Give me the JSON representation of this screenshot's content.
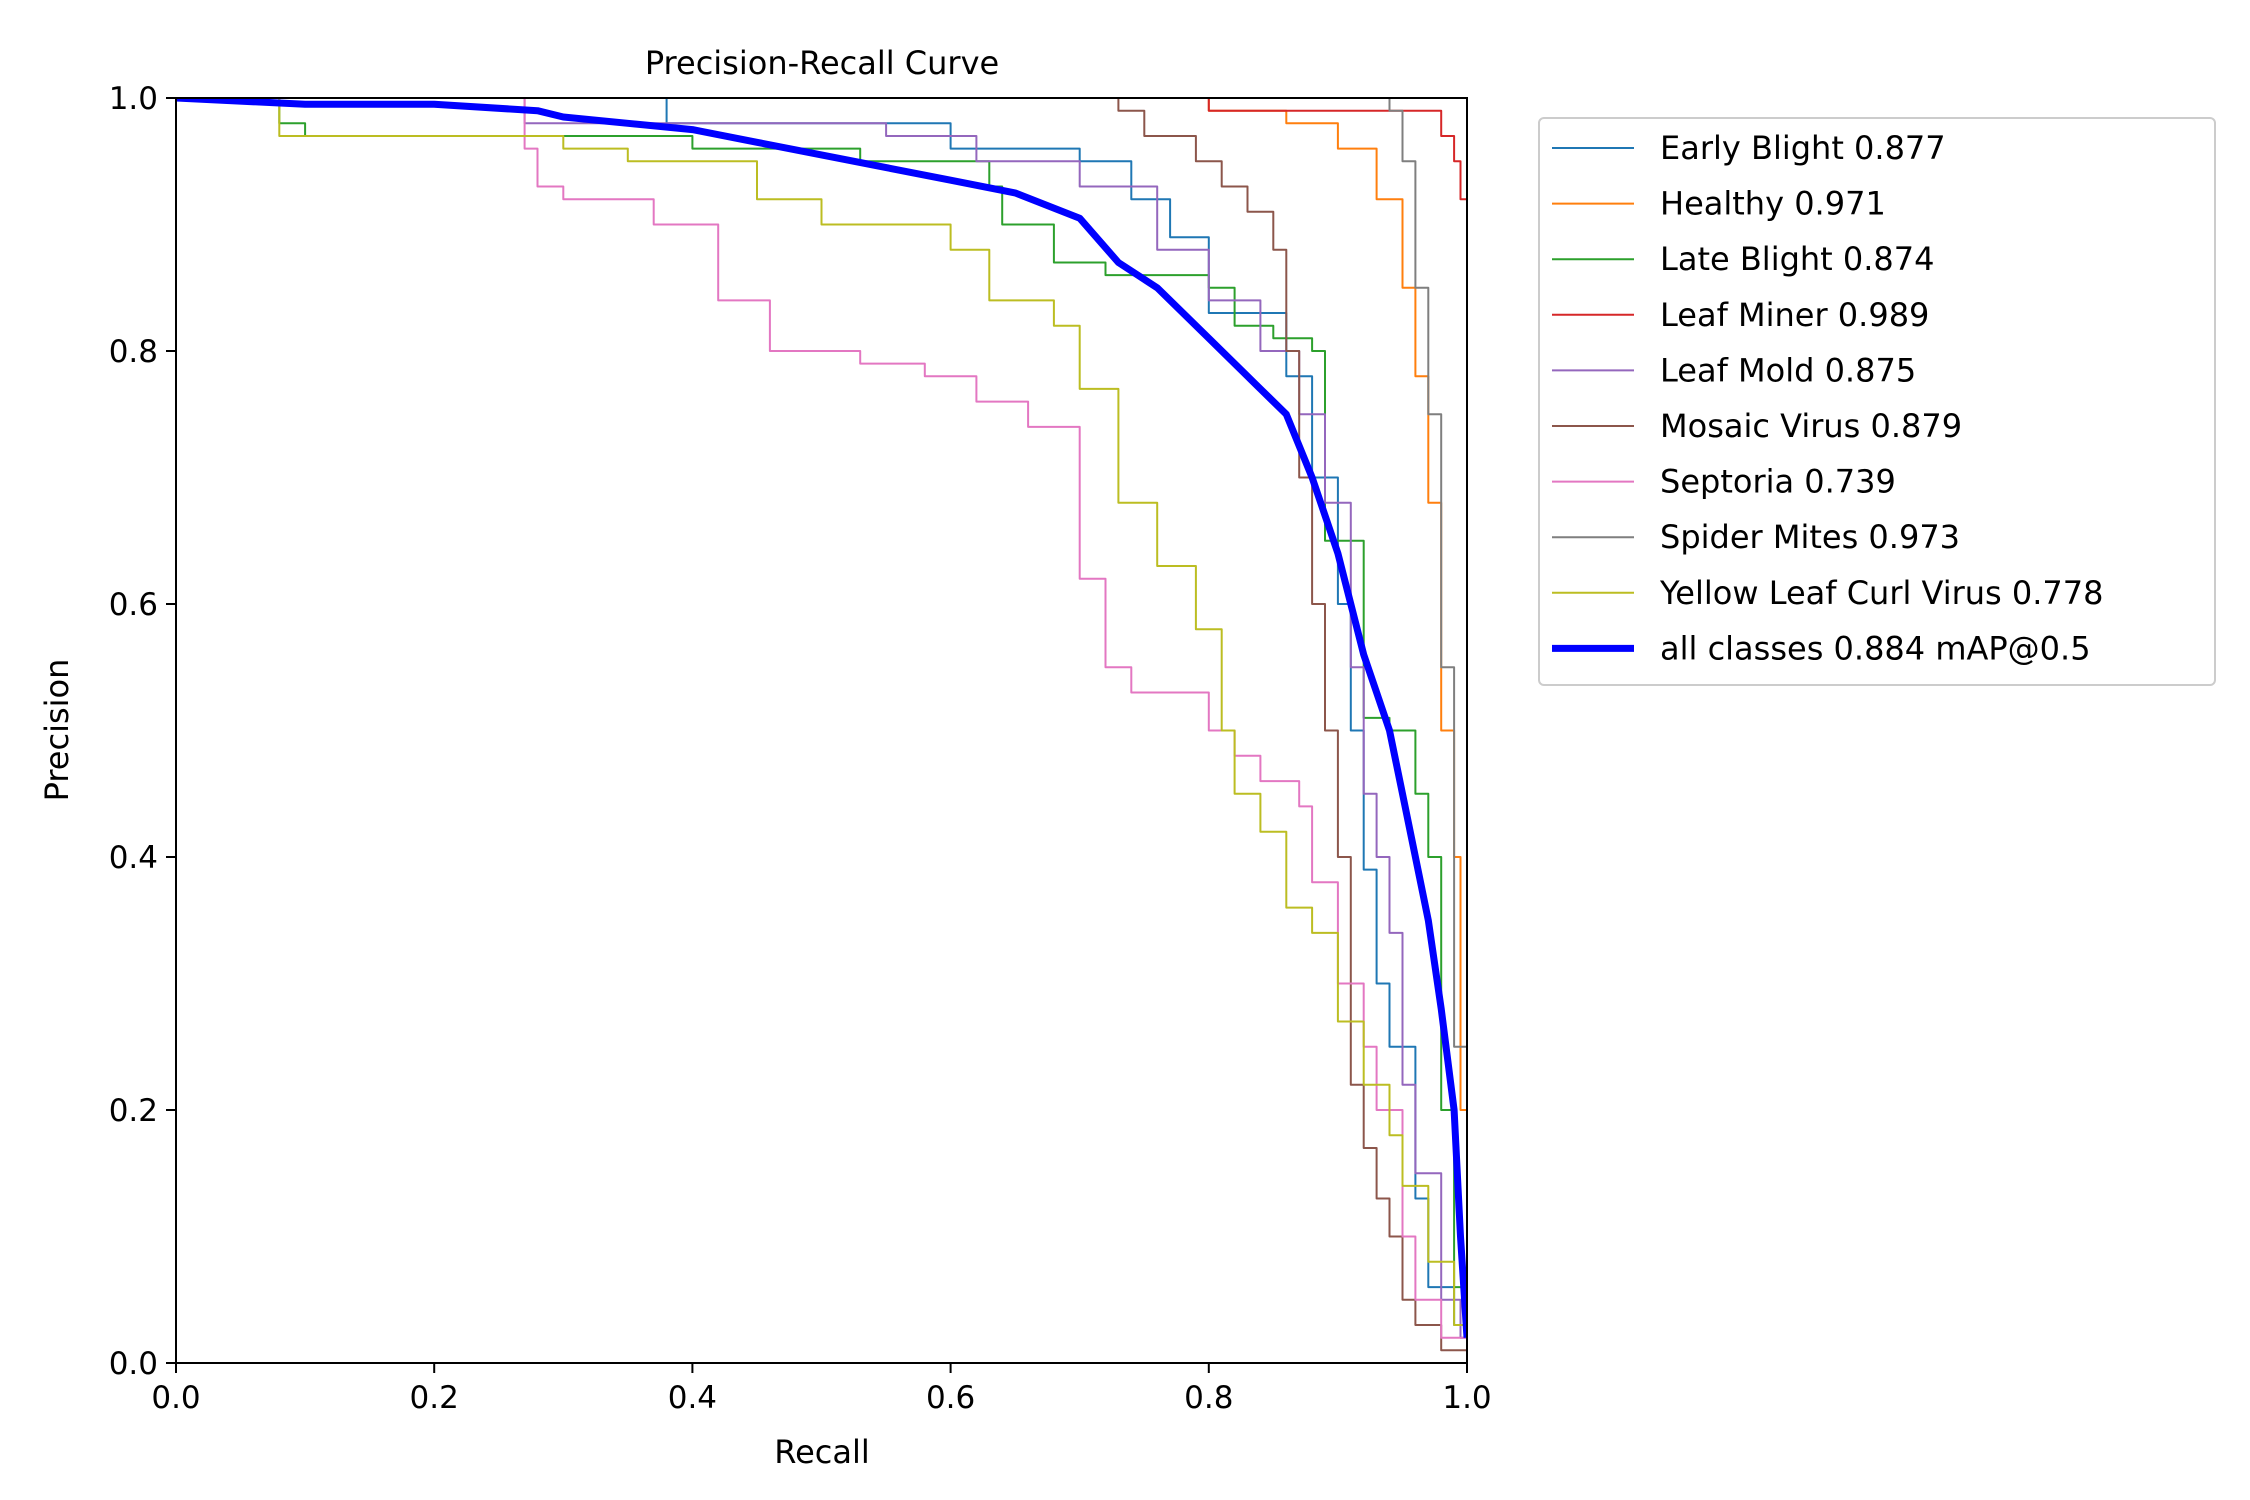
{
  "chart_data": {
    "type": "line",
    "title": "Precision-Recall Curve",
    "xlabel": "Recall",
    "ylabel": "Precision",
    "xlim": [
      0.0,
      1.0
    ],
    "ylim": [
      0.0,
      1.0
    ],
    "xticks": [
      "0.0",
      "0.2",
      "0.4",
      "0.6",
      "0.8",
      "1.0"
    ],
    "yticks": [
      "0.0",
      "0.2",
      "0.4",
      "0.6",
      "0.8",
      "1.0"
    ],
    "grid": false,
    "legend_position": "outside-top-right",
    "series": [
      {
        "name": "Early Blight 0.877",
        "color": "#1f77b4",
        "step": true,
        "x": [
          0.0,
          0.38,
          0.38,
          0.6,
          0.7,
          0.74,
          0.77,
          0.8,
          0.86,
          0.88,
          0.9,
          0.91,
          0.92,
          0.93,
          0.94,
          0.96,
          0.97,
          0.99,
          1.0
        ],
        "y": [
          1.0,
          1.0,
          0.98,
          0.96,
          0.95,
          0.92,
          0.89,
          0.83,
          0.78,
          0.7,
          0.6,
          0.5,
          0.39,
          0.3,
          0.25,
          0.13,
          0.06,
          0.03,
          0.0
        ]
      },
      {
        "name": "Healthy 0.971",
        "color": "#ff7f0e",
        "step": true,
        "x": [
          0.0,
          0.5,
          0.8,
          0.86,
          0.9,
          0.93,
          0.95,
          0.96,
          0.97,
          0.98,
          0.99,
          0.995,
          1.0
        ],
        "y": [
          1.0,
          1.0,
          0.99,
          0.98,
          0.96,
          0.92,
          0.85,
          0.78,
          0.68,
          0.5,
          0.4,
          0.2,
          0.0
        ]
      },
      {
        "name": "Late Blight 0.874",
        "color": "#2ca02c",
        "step": true,
        "x": [
          0.0,
          0.08,
          0.1,
          0.4,
          0.53,
          0.63,
          0.64,
          0.68,
          0.72,
          0.8,
          0.82,
          0.85,
          0.88,
          0.89,
          0.92,
          0.94,
          0.96,
          0.97,
          0.98,
          0.99,
          1.0
        ],
        "y": [
          1.0,
          0.98,
          0.97,
          0.96,
          0.95,
          0.93,
          0.9,
          0.87,
          0.86,
          0.85,
          0.82,
          0.81,
          0.8,
          0.65,
          0.51,
          0.5,
          0.45,
          0.4,
          0.2,
          0.06,
          0.0
        ]
      },
      {
        "name": "Leaf Miner 0.989",
        "color": "#d62728",
        "step": true,
        "x": [
          0.0,
          0.5,
          0.8,
          0.97,
          0.98,
          0.99,
          0.995,
          1.0
        ],
        "y": [
          1.0,
          1.0,
          0.99,
          0.99,
          0.97,
          0.95,
          0.92,
          0.16
        ]
      },
      {
        "name": "Leaf Mold 0.875",
        "color": "#9467bd",
        "step": true,
        "x": [
          0.0,
          0.27,
          0.55,
          0.62,
          0.7,
          0.76,
          0.8,
          0.84,
          0.87,
          0.89,
          0.91,
          0.92,
          0.93,
          0.94,
          0.95,
          0.96,
          0.98,
          0.995,
          1.0
        ],
        "y": [
          1.0,
          0.98,
          0.97,
          0.95,
          0.93,
          0.88,
          0.84,
          0.8,
          0.75,
          0.68,
          0.55,
          0.45,
          0.4,
          0.34,
          0.22,
          0.15,
          0.05,
          0.02,
          0.0
        ]
      },
      {
        "name": "Mosaic Virus 0.879",
        "color": "#8c564b",
        "step": true,
        "x": [
          0.0,
          0.7,
          0.73,
          0.75,
          0.79,
          0.81,
          0.83,
          0.85,
          0.86,
          0.87,
          0.88,
          0.89,
          0.9,
          0.91,
          0.92,
          0.93,
          0.94,
          0.95,
          0.96,
          0.98,
          1.0
        ],
        "y": [
          1.0,
          1.0,
          0.99,
          0.97,
          0.95,
          0.93,
          0.91,
          0.88,
          0.8,
          0.7,
          0.6,
          0.5,
          0.4,
          0.22,
          0.17,
          0.13,
          0.1,
          0.05,
          0.03,
          0.01,
          0.0
        ]
      },
      {
        "name": "Septoria 0.739",
        "color": "#e377c2",
        "step": true,
        "x": [
          0.0,
          0.27,
          0.28,
          0.3,
          0.37,
          0.42,
          0.46,
          0.53,
          0.58,
          0.62,
          0.66,
          0.7,
          0.72,
          0.74,
          0.78,
          0.8,
          0.82,
          0.84,
          0.87,
          0.88,
          0.9,
          0.92,
          0.93,
          0.95,
          0.96,
          0.98,
          1.0
        ],
        "y": [
          1.0,
          0.96,
          0.93,
          0.92,
          0.9,
          0.84,
          0.8,
          0.79,
          0.78,
          0.76,
          0.74,
          0.62,
          0.55,
          0.53,
          0.53,
          0.5,
          0.48,
          0.46,
          0.44,
          0.38,
          0.3,
          0.25,
          0.2,
          0.1,
          0.05,
          0.02,
          0.0
        ]
      },
      {
        "name": "Spider Mites 0.973",
        "color": "#7f7f7f",
        "step": true,
        "x": [
          0.0,
          0.4,
          0.94,
          0.95,
          0.96,
          0.97,
          0.98,
          0.99,
          1.0
        ],
        "y": [
          1.0,
          1.0,
          0.99,
          0.95,
          0.85,
          0.75,
          0.55,
          0.25,
          0.0
        ]
      },
      {
        "name": "Yellow Leaf Curl Virus 0.778",
        "color": "#bcbd22",
        "step": true,
        "x": [
          0.0,
          0.08,
          0.15,
          0.3,
          0.35,
          0.4,
          0.45,
          0.5,
          0.55,
          0.6,
          0.63,
          0.68,
          0.7,
          0.73,
          0.76,
          0.79,
          0.81,
          0.82,
          0.84,
          0.86,
          0.88,
          0.9,
          0.92,
          0.94,
          0.95,
          0.97,
          0.99,
          1.0
        ],
        "y": [
          1.0,
          0.97,
          0.97,
          0.96,
          0.95,
          0.95,
          0.92,
          0.9,
          0.9,
          0.88,
          0.84,
          0.82,
          0.77,
          0.68,
          0.63,
          0.58,
          0.5,
          0.45,
          0.42,
          0.36,
          0.34,
          0.27,
          0.22,
          0.18,
          0.14,
          0.08,
          0.03,
          0.0
        ]
      },
      {
        "name": "all classes 0.884 mAP@0.5",
        "color": "#0000ff",
        "step": false,
        "bold": true,
        "x": [
          0.0,
          0.1,
          0.2,
          0.28,
          0.3,
          0.35,
          0.4,
          0.45,
          0.5,
          0.55,
          0.6,
          0.65,
          0.7,
          0.73,
          0.76,
          0.8,
          0.83,
          0.86,
          0.88,
          0.9,
          0.91,
          0.92,
          0.93,
          0.94,
          0.95,
          0.96,
          0.97,
          0.98,
          0.99,
          0.995,
          1.0
        ],
        "y": [
          1.0,
          0.995,
          0.995,
          0.99,
          0.985,
          0.98,
          0.975,
          0.965,
          0.955,
          0.945,
          0.935,
          0.925,
          0.905,
          0.87,
          0.85,
          0.81,
          0.78,
          0.75,
          0.7,
          0.64,
          0.6,
          0.56,
          0.53,
          0.5,
          0.45,
          0.4,
          0.35,
          0.28,
          0.2,
          0.1,
          0.02
        ]
      }
    ]
  }
}
